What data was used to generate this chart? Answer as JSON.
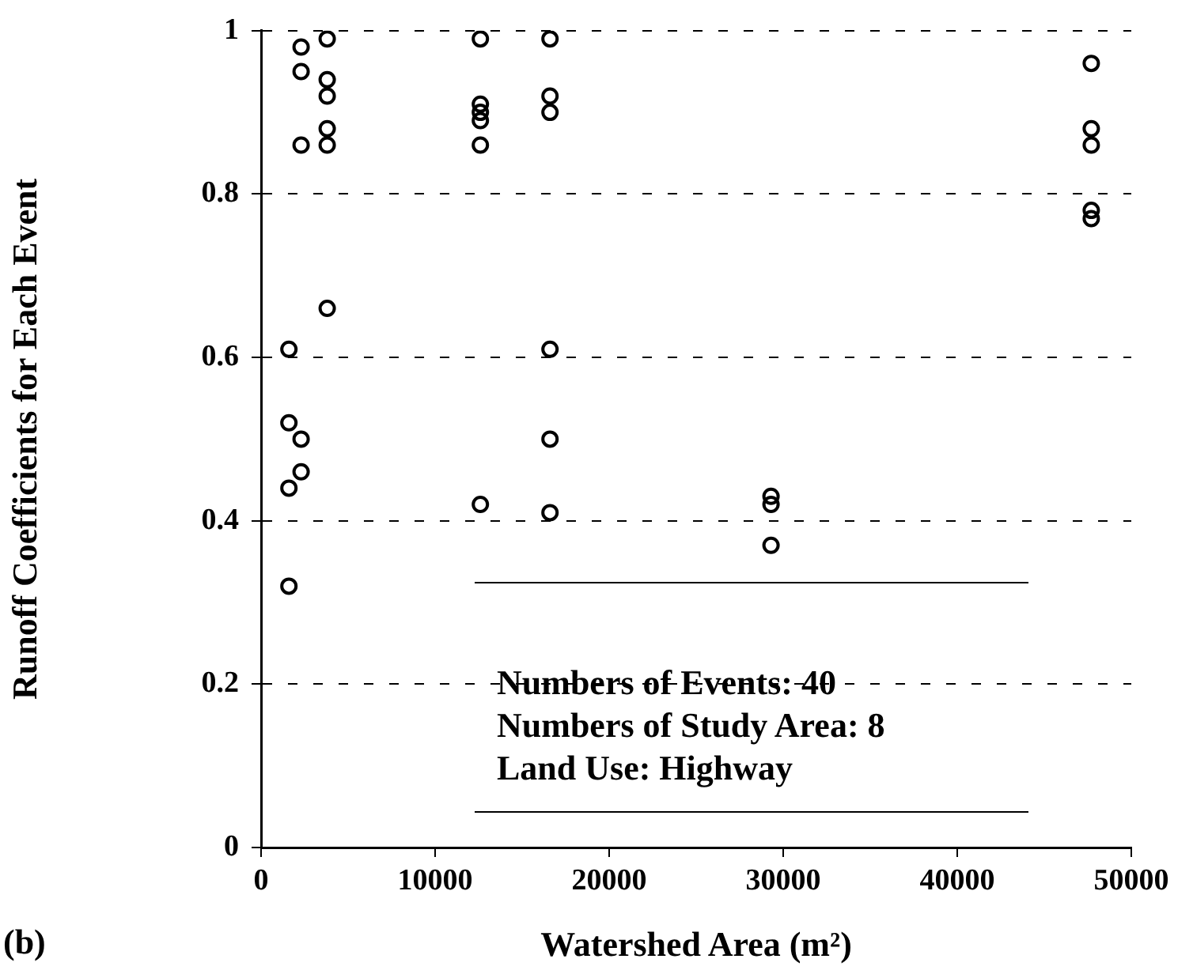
{
  "chart_data": {
    "type": "scatter",
    "xlabel": "Watershed Area (m²)",
    "ylabel": "Runoff Coefficients for Each Event",
    "x": [
      1600,
      1600,
      1600,
      1600,
      2300,
      2300,
      2300,
      2300,
      2300,
      3800,
      3800,
      3800,
      3800,
      3800,
      3800,
      12600,
      12600,
      12600,
      12600,
      12600,
      12600,
      16600,
      16600,
      16600,
      16600,
      16600,
      16600,
      29300,
      29300,
      29300,
      47700,
      47700,
      47700,
      47700,
      47700
    ],
    "series": [
      {
        "color": "#000000",
        "values": [
          0.61,
          0.52,
          0.44,
          0.32,
          0.98,
          0.95,
          0.86,
          0.5,
          0.46,
          0.99,
          0.94,
          0.92,
          0.88,
          0.86,
          0.66,
          0.99,
          0.91,
          0.9,
          0.89,
          0.86,
          0.42,
          0.99,
          0.92,
          0.9,
          0.61,
          0.5,
          0.41,
          0.43,
          0.42,
          0.37,
          0.96,
          0.88,
          0.86,
          0.78,
          0.77
        ]
      }
    ],
    "xlim": [
      0,
      50000
    ],
    "xticks": [
      0,
      10000,
      20000,
      30000,
      40000,
      50000
    ],
    "ylim": [
      0,
      1
    ],
    "yticks": [
      0,
      0.2,
      0.4,
      0.6,
      0.8,
      {
        "value": 1,
        "label": "1"
      }
    ],
    "grid": "y",
    "legend": false,
    "marker": "circle",
    "annotations": [
      "Numbers of Events: 40",
      "Numbers of Study Area: 8",
      "Land Use: Highway",
      "(b)"
    ]
  }
}
